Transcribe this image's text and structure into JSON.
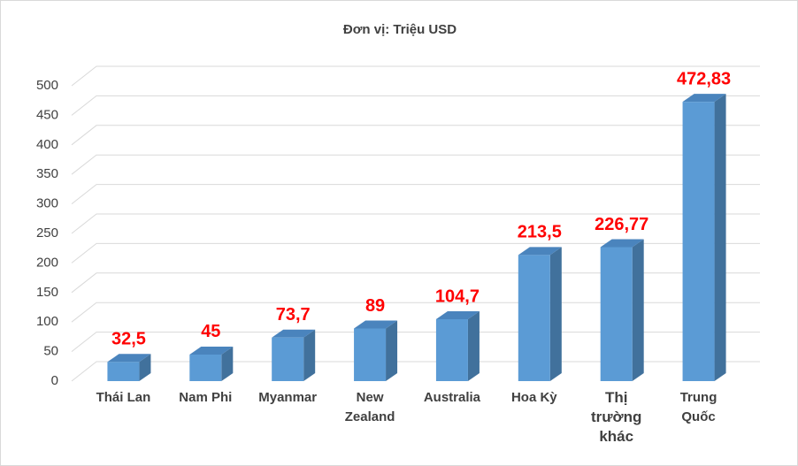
{
  "chart_data": {
    "type": "bar3d",
    "title": "Đơn vị: Triệu USD",
    "categories": [
      "Thái Lan",
      "Nam Phi",
      "Myanmar",
      "New Zealand",
      "Australia",
      "Hoa Kỳ",
      "Thị trường khác",
      "Trung Quốc"
    ],
    "values": [
      32.5,
      45,
      73.7,
      89,
      104.7,
      213.5,
      226.77,
      472.83
    ],
    "value_labels": [
      "32,5",
      "45",
      "73,7",
      "89",
      "104,7",
      "213,5",
      "226,77",
      "472,83"
    ],
    "color": "#5b9bd5",
    "ylim": [
      0,
      500
    ],
    "yticks": [
      0,
      50,
      100,
      150,
      200,
      250,
      300,
      350,
      400,
      450,
      500
    ],
    "grid": true
  }
}
